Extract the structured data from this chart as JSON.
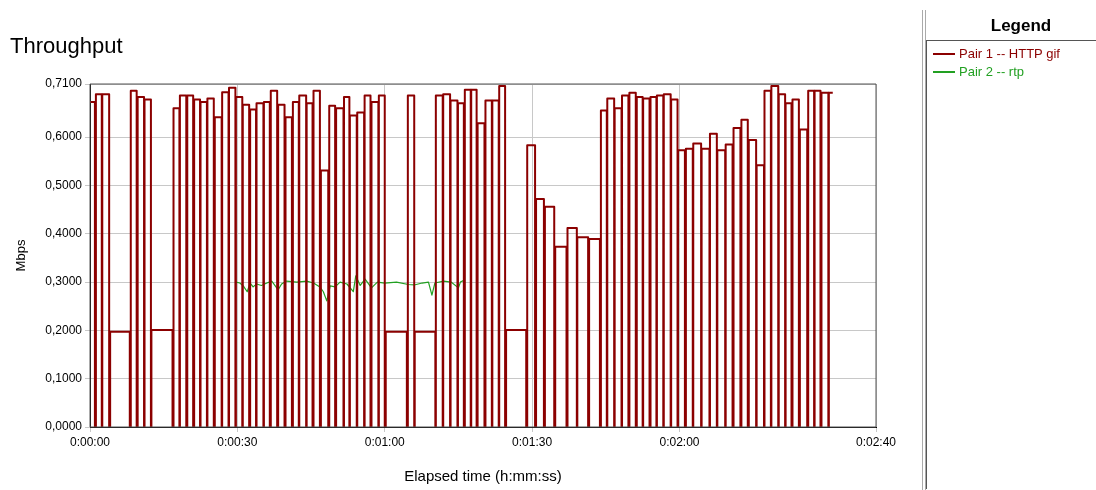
{
  "chart_data": {
    "type": "line",
    "title": "Throughput",
    "xlabel": "Elapsed time (h:mm:ss)",
    "ylabel": "Mbps",
    "legend_title": "Legend",
    "legend": "right",
    "grid": true,
    "marker": "none",
    "xlim": [
      0,
      160
    ],
    "xticks": [
      {
        "value": 0,
        "label": "0:00:00"
      },
      {
        "value": 30,
        "label": "0:00:30"
      },
      {
        "value": 60,
        "label": "0:01:00"
      },
      {
        "value": 90,
        "label": "0:01:30"
      },
      {
        "value": 120,
        "label": "0:02:00"
      },
      {
        "value": 160,
        "label": "0:02:40"
      }
    ],
    "ylim": [
      0,
      0.71
    ],
    "yticks": [
      {
        "value": 0,
        "label": "0,0000"
      },
      {
        "value": 0.1,
        "label": "0,1000"
      },
      {
        "value": 0.2,
        "label": "0,2000"
      },
      {
        "value": 0.3,
        "label": "0,3000"
      },
      {
        "value": 0.4,
        "label": "0,4000"
      },
      {
        "value": 0.5,
        "label": "0,5000"
      },
      {
        "value": 0.6,
        "label": "0,6000"
      },
      {
        "value": 0.71,
        "label": "0,7100"
      }
    ],
    "series": [
      {
        "name": "Pair 1 -- HTTP gif",
        "color": "#8b0000",
        "type": "step",
        "x": [
          0.0,
          1.0,
          1.2,
          2.4,
          2.5,
          3.9,
          4.1,
          8.1,
          8.3,
          9.5,
          9.7,
          11.0,
          11.1,
          12.4,
          12.5,
          16.8,
          17.0,
          18.2,
          18.3,
          19.6,
          19.8,
          21.0,
          21.2,
          22.4,
          22.5,
          23.8,
          23.9,
          25.2,
          25.4,
          26.8,
          26.9,
          28.2,
          28.3,
          29.6,
          29.7,
          31.0,
          31.1,
          32.4,
          32.6,
          33.8,
          33.9,
          35.3,
          35.4,
          36.6,
          36.8,
          38.1,
          38.3,
          39.6,
          39.8,
          41.1,
          41.3,
          42.5,
          42.6,
          44.0,
          44.1,
          45.3,
          45.5,
          46.8,
          47.0,
          48.5,
          48.7,
          49.9,
          50.1,
          51.6,
          51.7,
          52.8,
          52.9,
          54.3,
          54.4,
          55.8,
          55.9,
          57.1,
          57.3,
          58.7,
          58.8,
          60.0,
          60.2,
          64.5,
          64.7,
          66.0,
          66.1,
          70.3,
          70.4,
          71.8,
          71.9,
          73.3,
          73.4,
          74.8,
          74.9,
          76.1,
          76.3,
          77.5,
          77.6,
          78.7,
          78.9,
          80.3,
          80.5,
          81.8,
          81.9,
          83.2,
          83.3,
          84.5,
          84.7,
          88.8,
          89.0,
          90.6,
          90.8,
          92.4,
          92.6,
          94.5,
          94.7,
          97.0,
          97.2,
          99.1,
          99.2,
          101.4,
          101.6,
          103.8,
          104.0,
          105.2,
          105.3,
          106.7,
          106.8,
          108.2,
          108.3,
          109.6,
          109.8,
          111.1,
          111.3,
          112.5,
          112.6,
          113.9,
          114.1,
          115.3,
          115.4,
          116.7,
          116.8,
          118.2,
          118.3,
          119.6,
          119.7,
          121.1,
          121.3,
          122.7,
          122.8,
          124.4,
          124.5,
          126.1,
          126.2,
          127.6,
          127.7,
          129.3,
          129.4,
          130.8,
          131.0,
          132.4,
          132.6,
          133.9,
          134.1,
          135.6,
          135.7,
          137.2,
          137.3,
          138.6,
          138.7,
          140.1,
          140.2,
          141.5,
          141.6,
          142.8,
          143.0,
          144.3,
          144.5,
          146.0,
          146.2,
          147.4,
          147.5,
          148.7,
          148.9,
          150.3,
          150.4,
          151.2
        ],
        "values": [
          0.673,
          0,
          0.689,
          0,
          0.689,
          0,
          0.197,
          0,
          0.696,
          0,
          0.683,
          0,
          0.678,
          0,
          0.201,
          0,
          0.66,
          0,
          0.686,
          0,
          0.686,
          0,
          0.678,
          0,
          0.673,
          0,
          0.68,
          0,
          0.641,
          0,
          0.693,
          0,
          0.702,
          0,
          0.683,
          0,
          0.667,
          0,
          0.657,
          0,
          0.67,
          0,
          0.673,
          0,
          0.696,
          0,
          0.667,
          0,
          0.641,
          0,
          0.673,
          0,
          0.686,
          0,
          0.67,
          0,
          0.696,
          0,
          0.531,
          0,
          0.665,
          0,
          0.66,
          0,
          0.683,
          0,
          0.645,
          0,
          0.651,
          0,
          0.686,
          0,
          0.673,
          0,
          0.686,
          0,
          0.197,
          0,
          0.686,
          0,
          0.197,
          0,
          0.686,
          0,
          0.689,
          0,
          0.676,
          0,
          0.67,
          0,
          0.698,
          0,
          0.698,
          0,
          0.629,
          0,
          0.676,
          0,
          0.676,
          0,
          0.706,
          0,
          0.201,
          0,
          0.583,
          0,
          0.472,
          0,
          0.456,
          0,
          0.373,
          0,
          0.412,
          0,
          0.393,
          0,
          0.389,
          0,
          0.655,
          0,
          0.68,
          0,
          0.66,
          0,
          0.686,
          0,
          0.692,
          0,
          0.683,
          0,
          0.68,
          0,
          0.683,
          0,
          0.686,
          0,
          0.689,
          0,
          0.678,
          0,
          0.573,
          0,
          0.576,
          0,
          0.587,
          0,
          0.576,
          0,
          0.607,
          0,
          0.573,
          0,
          0.585,
          0,
          0.619,
          0,
          0.636,
          0,
          0.594,
          0,
          0.542,
          0,
          0.696,
          0,
          0.706,
          0,
          0.689,
          0,
          0.67,
          0,
          0.678,
          0,
          0.616,
          0,
          0.696,
          0,
          0.696,
          0,
          0.692,
          0,
          0.692,
          0.692
        ]
      },
      {
        "name": "Pair 2 -- rtp",
        "color": "#22a022",
        "type": "line",
        "x": [
          29.7,
          30.5,
          31.2,
          32.0,
          32.6,
          33.2,
          33.9,
          34.9,
          36.0,
          37.0,
          38.3,
          39.0,
          40.0,
          42.1,
          44.1,
          45.5,
          46.8,
          47.5,
          48.2,
          48.9,
          49.9,
          50.9,
          52.3,
          53.6,
          54.1,
          55.0,
          56.0,
          57.3,
          58.5,
          60.0,
          62.4,
          64.8,
          66.0,
          67.6,
          68.9,
          69.6,
          70.2,
          72.0,
          73.5,
          75.0,
          75.4,
          76.0
        ],
        "values": [
          0.3,
          0.298,
          0.292,
          0.28,
          0.298,
          0.29,
          0.296,
          0.293,
          0.298,
          0.302,
          0.284,
          0.296,
          0.302,
          0.3,
          0.302,
          0.298,
          0.29,
          0.28,
          0.261,
          0.292,
          0.29,
          0.3,
          0.296,
          0.28,
          0.313,
          0.293,
          0.306,
          0.288,
          0.3,
          0.298,
          0.3,
          0.295,
          0.294,
          0.298,
          0.3,
          0.273,
          0.298,
          0.302,
          0.3,
          0.288,
          0.3,
          0.303
        ]
      }
    ]
  }
}
